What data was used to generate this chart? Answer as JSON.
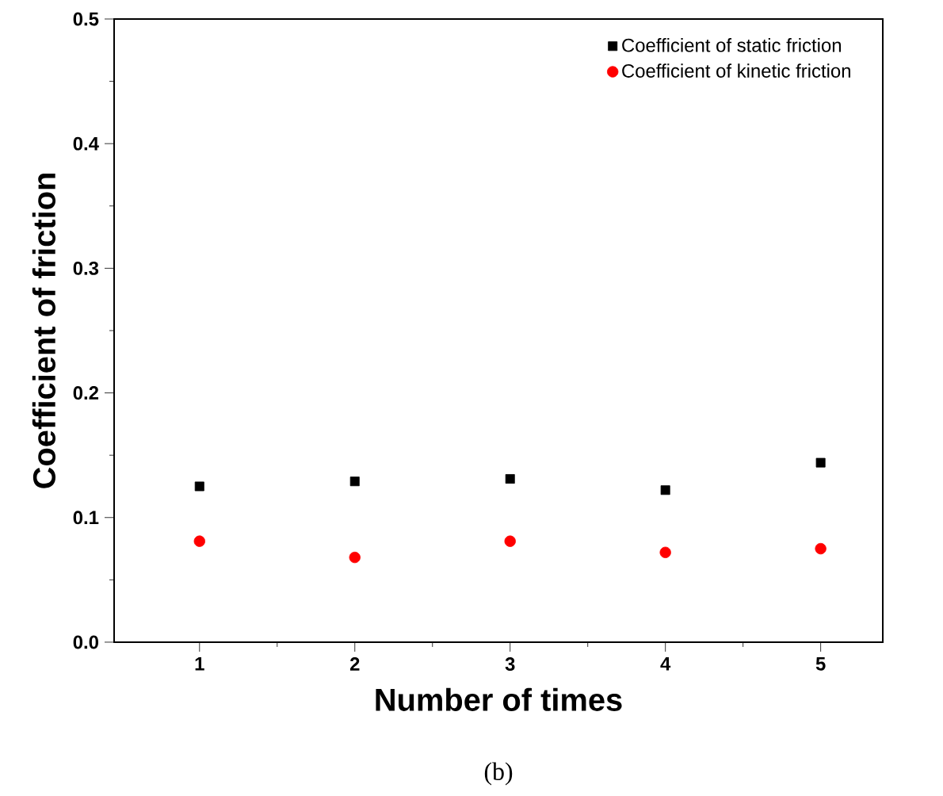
{
  "chart_data": {
    "type": "scatter",
    "xlabel": "Number of times",
    "ylabel": "Coefficient of friction",
    "x": [
      1,
      2,
      3,
      4,
      5
    ],
    "series": [
      {
        "name": "Coefficient of static friction",
        "color": "#000000",
        "marker": "square",
        "values": [
          0.125,
          0.129,
          0.131,
          0.122,
          0.144
        ]
      },
      {
        "name": "Coefficient of kinetic friction",
        "color": "#ff0000",
        "marker": "circle",
        "values": [
          0.081,
          0.068,
          0.081,
          0.072,
          0.075
        ]
      }
    ],
    "xlim": [
      0.45,
      5.4
    ],
    "xticks": [
      1,
      {
        "value": 1.5,
        "label": null
      },
      2,
      {
        "value": 2.5,
        "label": null
      },
      3,
      {
        "value": 3.5,
        "label": null
      },
      4,
      {
        "value": 4.5,
        "label": null
      },
      5
    ],
    "ylim": [
      0,
      0.5
    ],
    "yticks": [
      {
        "value": 0,
        "label": "0.0"
      },
      {
        "value": 0.05,
        "label": null
      },
      0.1,
      {
        "value": 0.15,
        "label": null
      },
      0.2,
      {
        "value": 0.25,
        "label": null
      },
      0.3,
      {
        "value": 0.35,
        "label": null
      },
      0.4,
      {
        "value": 0.45,
        "label": null
      },
      0.5
    ],
    "grid": false,
    "legend": "top right",
    "annotations": [
      "(b)"
    ]
  }
}
